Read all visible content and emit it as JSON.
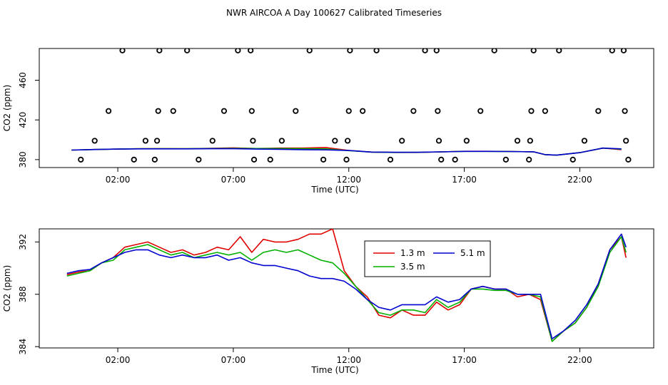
{
  "title": "NWR AIRCOA A  Day 100627  Calibrated Timeseries",
  "chart_data": [
    {
      "type": "scatter+line",
      "title": "",
      "xlabel": "Time (UTC)",
      "ylabel": "CO2 (ppm)",
      "xlim": [
        -1.4,
        25.2
      ],
      "ylim": [
        372,
        492
      ],
      "x_ticks": [
        2,
        7,
        12,
        17,
        22
      ],
      "x_tick_labels": [
        "02:00",
        "07:00",
        "12:00",
        "17:00",
        "22:00"
      ],
      "y_ticks": [
        380,
        420,
        460
      ],
      "y_tick_labels": [
        "380",
        "420",
        "460"
      ],
      "points": [
        [
          0.4,
          380
        ],
        [
          1.0,
          399
        ],
        [
          1.6,
          429
        ],
        [
          2.2,
          490
        ],
        [
          2.7,
          380
        ],
        [
          3.2,
          399
        ],
        [
          3.6,
          380
        ],
        [
          3.7,
          399
        ],
        [
          3.75,
          429
        ],
        [
          3.8,
          490
        ],
        [
          4.4,
          429
        ],
        [
          5.0,
          490
        ],
        [
          5.5,
          380
        ],
        [
          6.1,
          399
        ],
        [
          6.6,
          429
        ],
        [
          7.2,
          490
        ],
        [
          7.75,
          490
        ],
        [
          7.8,
          429
        ],
        [
          7.85,
          399
        ],
        [
          7.9,
          380
        ],
        [
          8.6,
          380
        ],
        [
          9.1,
          399
        ],
        [
          9.7,
          429
        ],
        [
          10.3,
          490
        ],
        [
          10.9,
          380
        ],
        [
          11.4,
          399
        ],
        [
          11.9,
          380
        ],
        [
          11.95,
          399
        ],
        [
          12.0,
          429
        ],
        [
          12.05,
          490
        ],
        [
          12.6,
          429
        ],
        [
          13.2,
          490
        ],
        [
          13.8,
          380
        ],
        [
          14.3,
          399
        ],
        [
          14.8,
          429
        ],
        [
          15.3,
          490
        ],
        [
          15.8,
          490
        ],
        [
          15.85,
          429
        ],
        [
          15.9,
          399
        ],
        [
          16.0,
          380
        ],
        [
          16.6,
          380
        ],
        [
          17.1,
          399
        ],
        [
          17.7,
          429
        ],
        [
          18.3,
          490
        ],
        [
          18.8,
          380
        ],
        [
          19.3,
          399
        ],
        [
          19.8,
          380
        ],
        [
          19.85,
          399
        ],
        [
          19.9,
          429
        ],
        [
          20.0,
          490
        ],
        [
          20.5,
          429
        ],
        [
          21.1,
          490
        ],
        [
          21.7,
          380
        ],
        [
          22.2,
          399
        ],
        [
          22.8,
          429
        ],
        [
          23.4,
          490
        ],
        [
          23.9,
          490
        ],
        [
          23.95,
          429
        ],
        [
          24.0,
          399
        ],
        [
          24.1,
          380
        ]
      ],
      "series": [
        {
          "name": "1.3 m",
          "color": "#e00000",
          "x": [
            0,
            1,
            2,
            3,
            4,
            5,
            6,
            7,
            8,
            9,
            10,
            11,
            12,
            13,
            14,
            15,
            16,
            17,
            18,
            19,
            20,
            20.5,
            21,
            22,
            23,
            23.8
          ],
          "y": [
            389.6,
            390.2,
            390.6,
            391.0,
            391.1,
            391.0,
            391.3,
            391.8,
            391.2,
            391.6,
            391.6,
            392.2,
            389.2,
            387.6,
            387.2,
            387.2,
            387.8,
            388.4,
            388.4,
            388.2,
            387.8,
            385.0,
            384.5,
            387.0,
            391.6,
            390.0
          ]
        },
        {
          "name": "3.5 m",
          "color": "#00b000",
          "x": [
            0,
            1,
            2,
            3,
            4,
            5,
            6,
            7,
            8,
            9,
            10,
            11,
            12,
            13,
            14,
            15,
            16,
            17,
            18,
            19,
            20,
            20.5,
            21,
            22,
            23,
            23.8
          ],
          "y": [
            389.6,
            390.2,
            390.6,
            391.0,
            391.0,
            391.0,
            391.2,
            391.4,
            391.2,
            391.2,
            391.0,
            390.8,
            389.0,
            387.5,
            387.2,
            387.3,
            387.8,
            388.3,
            388.3,
            388.2,
            387.8,
            385.0,
            384.5,
            387.0,
            391.6,
            390.5
          ]
        },
        {
          "name": "5.1 m",
          "color": "#0000d0",
          "x": [
            0,
            1,
            2,
            3,
            4,
            5,
            6,
            7,
            8,
            9,
            10,
            11,
            12,
            13,
            14,
            15,
            16,
            17,
            18,
            19,
            20,
            20.5,
            21,
            22,
            23,
            23.8
          ],
          "y": [
            389.6,
            390.2,
            390.6,
            390.8,
            390.8,
            390.8,
            391.0,
            391.0,
            390.6,
            390.4,
            390.0,
            389.8,
            389.2,
            387.6,
            387.4,
            387.4,
            387.8,
            388.3,
            388.3,
            388.2,
            387.9,
            385.0,
            384.5,
            387.0,
            391.6,
            390.8
          ]
        }
      ]
    },
    {
      "type": "line",
      "title": "",
      "xlabel": "Time (UTC)",
      "ylabel": "CO2 (ppm)",
      "xlim": [
        -1.4,
        25.2
      ],
      "ylim": [
        383.9,
        393.0
      ],
      "x_ticks": [
        2,
        7,
        12,
        17,
        22
      ],
      "x_tick_labels": [
        "02:00",
        "07:00",
        "12:00",
        "17:00",
        "22:00"
      ],
      "y_ticks": [
        384,
        388,
        392
      ],
      "y_tick_labels": [
        "384",
        "388",
        "392"
      ],
      "legend": {
        "position": "top-center",
        "entries": [
          "1.3 m",
          "3.5 m",
          "5.1 m"
        ]
      },
      "series": [
        {
          "name": "1.3 m",
          "color": "#e00000",
          "x": [
            -0.2,
            0.3,
            0.8,
            1.3,
            1.8,
            2.3,
            2.8,
            3.3,
            3.8,
            4.3,
            4.8,
            5.3,
            5.8,
            6.3,
            6.8,
            7.3,
            7.8,
            8.3,
            8.8,
            9.3,
            9.8,
            10.3,
            10.8,
            11.3,
            11.8,
            12.3,
            12.8,
            13.3,
            13.8,
            14.3,
            14.8,
            15.3,
            15.8,
            16.3,
            16.8,
            17.3,
            17.8,
            18.3,
            18.8,
            19.3,
            19.8,
            20.3,
            20.8,
            21.3,
            21.8,
            22.3,
            22.8,
            23.3,
            23.8,
            24.0
          ],
          "y": [
            389.5,
            389.7,
            389.8,
            390.4,
            390.8,
            391.6,
            391.8,
            392.0,
            391.6,
            391.2,
            391.4,
            391.0,
            391.2,
            391.6,
            391.4,
            392.4,
            391.2,
            392.2,
            392.0,
            392.0,
            392.2,
            392.6,
            392.6,
            393.0,
            389.8,
            388.6,
            387.8,
            386.4,
            386.2,
            386.8,
            386.4,
            386.4,
            387.4,
            386.8,
            387.2,
            388.4,
            388.6,
            388.4,
            388.4,
            387.8,
            388.0,
            387.6,
            384.4,
            385.2,
            385.8,
            387.0,
            388.8,
            391.4,
            392.4,
            390.8
          ]
        },
        {
          "name": "3.5 m",
          "color": "#00b000",
          "x": [
            -0.2,
            0.3,
            0.8,
            1.3,
            1.8,
            2.3,
            2.8,
            3.3,
            3.8,
            4.3,
            4.8,
            5.3,
            5.8,
            6.3,
            6.8,
            7.3,
            7.8,
            8.3,
            8.8,
            9.3,
            9.8,
            10.3,
            10.8,
            11.3,
            11.8,
            12.3,
            12.8,
            13.3,
            13.8,
            14.3,
            14.8,
            15.3,
            15.8,
            16.3,
            16.8,
            17.3,
            17.8,
            18.3,
            18.8,
            19.3,
            19.8,
            20.3,
            20.8,
            21.3,
            21.8,
            22.3,
            22.8,
            23.3,
            23.8,
            24.0
          ],
          "y": [
            389.4,
            389.6,
            389.8,
            390.4,
            390.6,
            391.4,
            391.6,
            391.8,
            391.4,
            391.0,
            391.2,
            390.8,
            391.0,
            391.2,
            391.0,
            391.2,
            390.6,
            391.2,
            391.4,
            391.2,
            391.4,
            391.0,
            390.6,
            390.4,
            389.6,
            388.6,
            387.6,
            386.6,
            386.4,
            386.8,
            386.8,
            386.6,
            387.6,
            387.0,
            387.4,
            388.4,
            388.4,
            388.3,
            388.3,
            388.0,
            388.0,
            387.8,
            384.4,
            385.2,
            385.8,
            387.0,
            388.6,
            391.2,
            392.4,
            391.2
          ]
        },
        {
          "name": "5.1 m",
          "color": "#0000d0",
          "x": [
            -0.2,
            0.3,
            0.8,
            1.3,
            1.8,
            2.3,
            2.8,
            3.3,
            3.8,
            4.3,
            4.8,
            5.3,
            5.8,
            6.3,
            6.8,
            7.3,
            7.8,
            8.3,
            8.8,
            9.3,
            9.8,
            10.3,
            10.8,
            11.3,
            11.8,
            12.3,
            12.8,
            13.3,
            13.8,
            14.3,
            14.8,
            15.3,
            15.8,
            16.3,
            16.8,
            17.3,
            17.8,
            18.3,
            18.8,
            19.3,
            19.8,
            20.3,
            20.8,
            21.3,
            21.8,
            22.3,
            22.8,
            23.3,
            23.8,
            24.0
          ],
          "y": [
            389.6,
            389.8,
            389.9,
            390.4,
            390.8,
            391.2,
            391.4,
            391.4,
            391.0,
            390.8,
            391.0,
            390.8,
            390.8,
            391.0,
            390.6,
            390.8,
            390.4,
            390.2,
            390.2,
            390.0,
            389.8,
            389.4,
            389.2,
            389.2,
            389.0,
            388.4,
            387.6,
            387.0,
            386.8,
            387.2,
            387.2,
            387.2,
            387.8,
            387.4,
            387.6,
            388.4,
            388.6,
            388.4,
            388.4,
            388.0,
            388.0,
            388.0,
            384.6,
            385.2,
            386.0,
            387.2,
            388.8,
            391.4,
            392.6,
            391.6
          ]
        }
      ]
    }
  ]
}
